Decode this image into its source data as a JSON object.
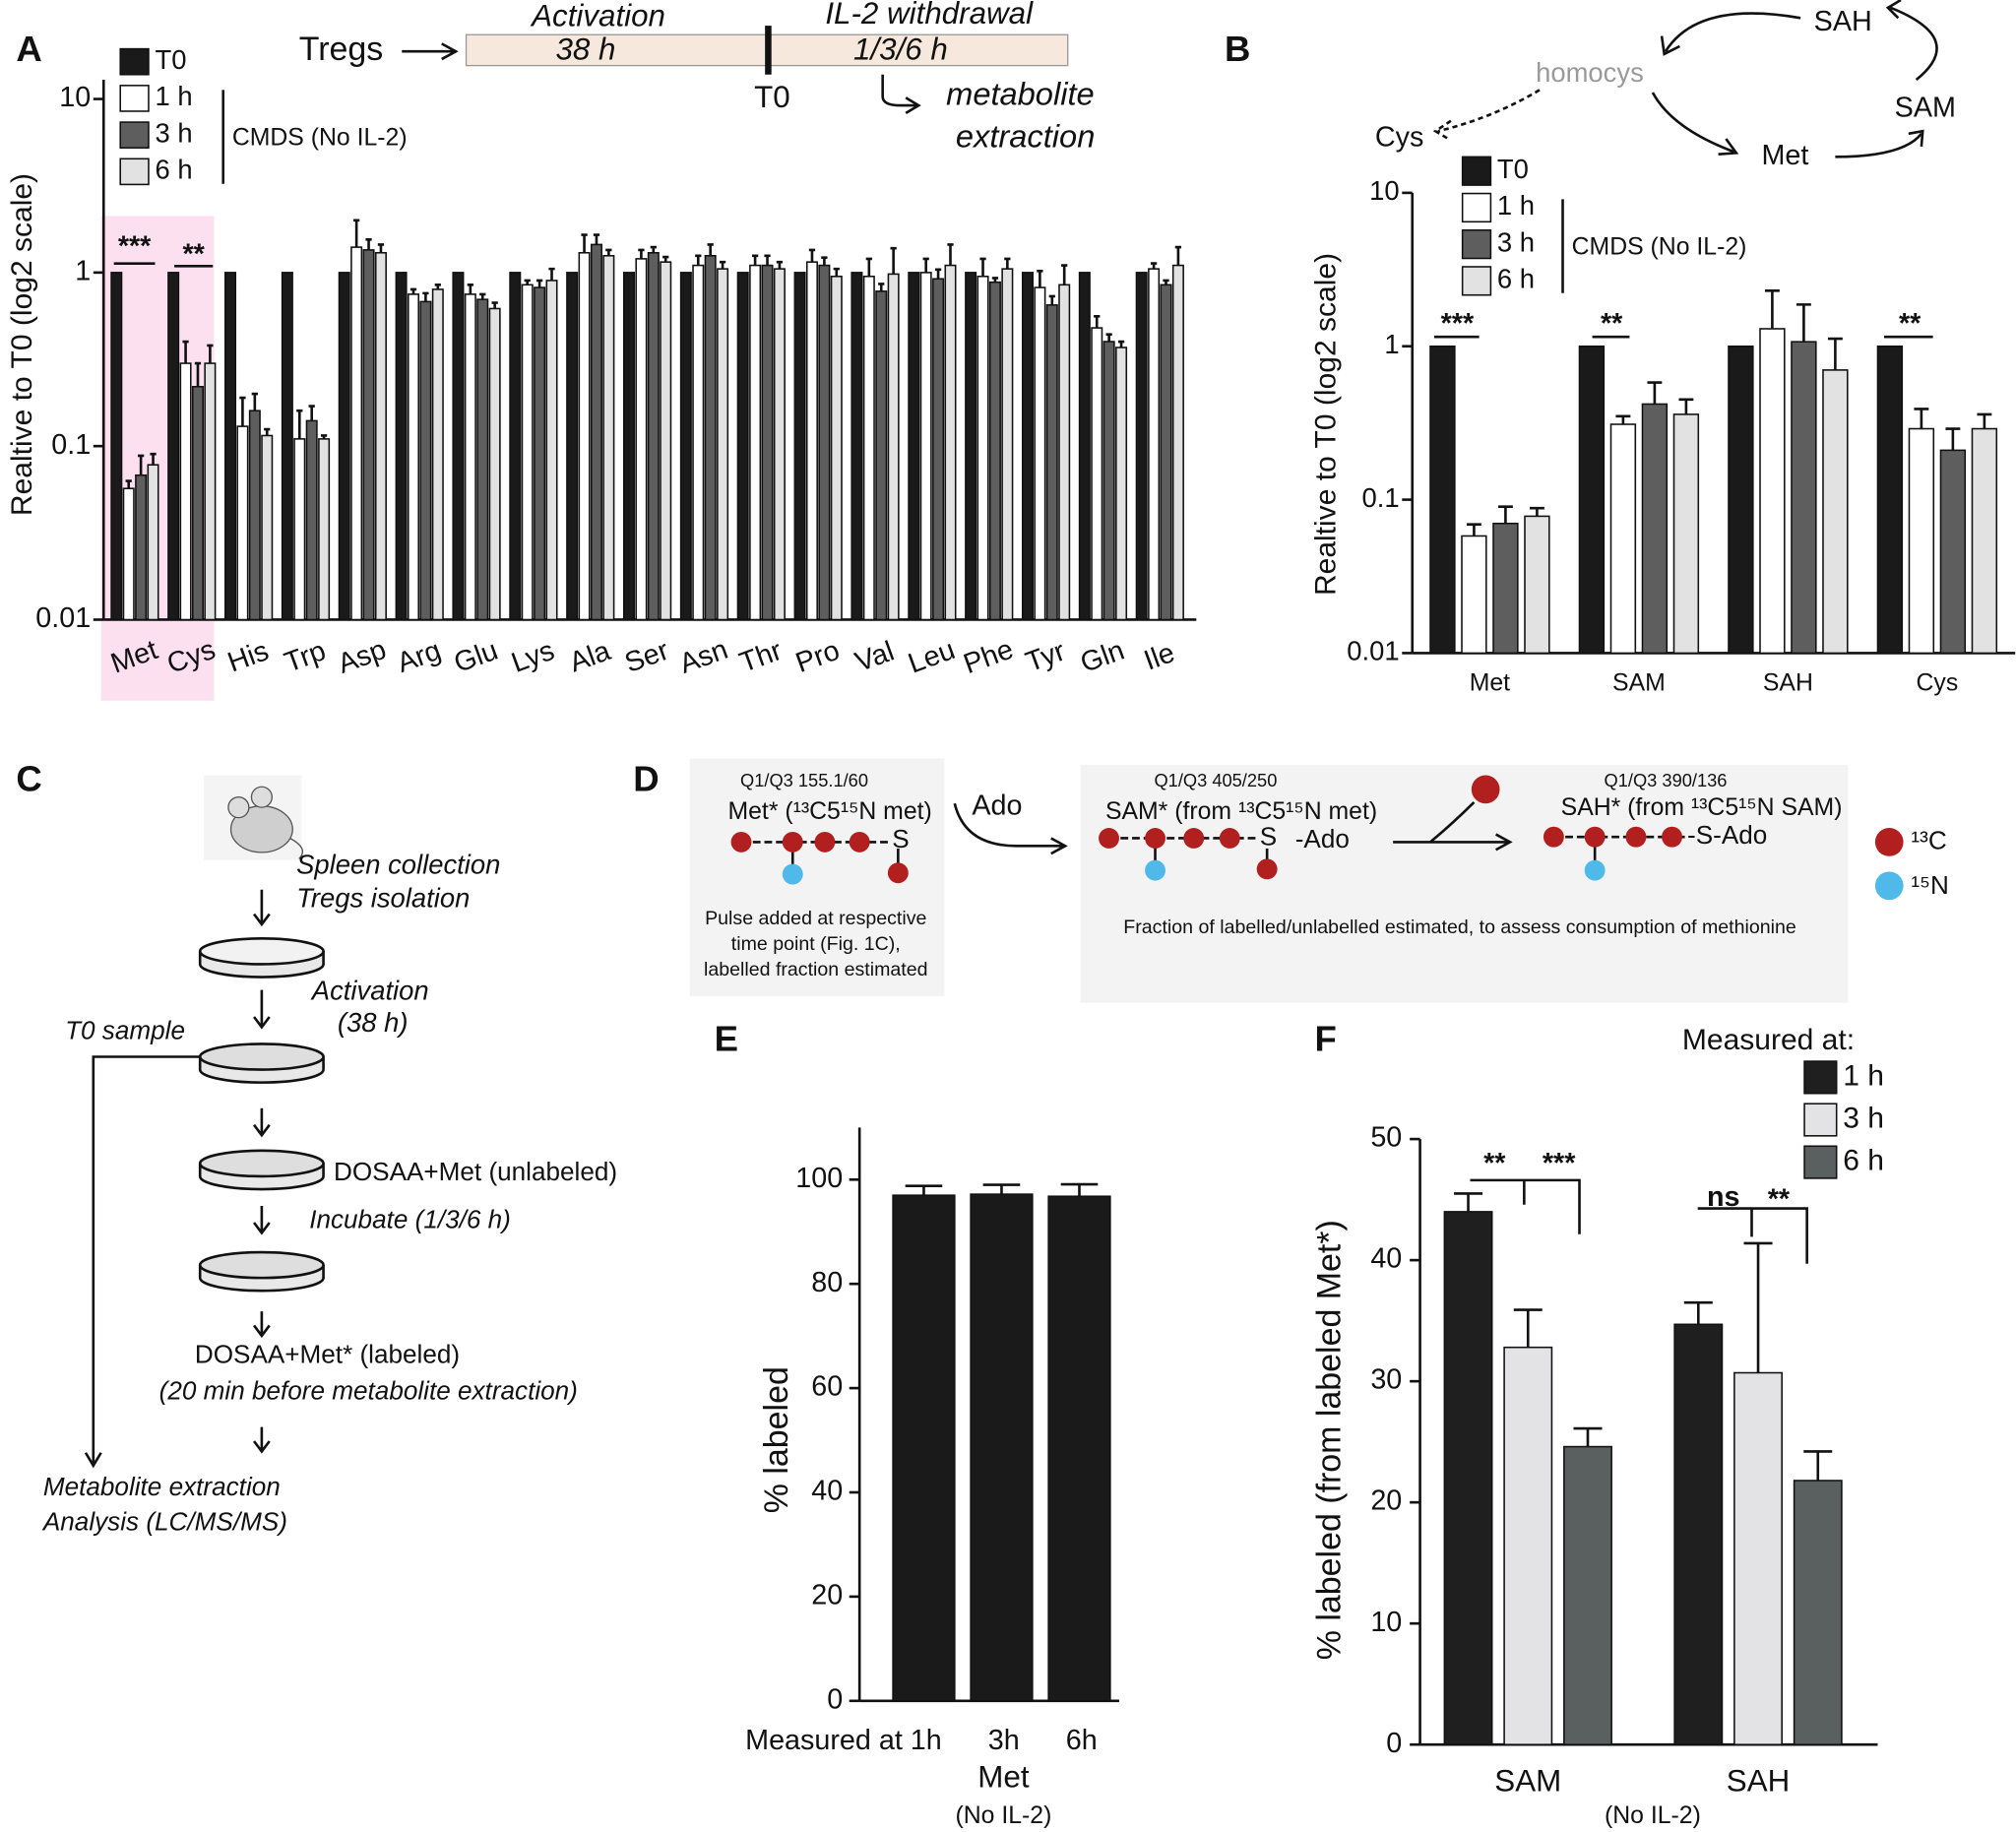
{
  "panel_labels": [
    "A",
    "B",
    "C",
    "D",
    "E",
    "F"
  ],
  "chart_data": [
    {
      "type": "bar",
      "y_label": "Realtive to T0 (log2 scale)",
      "log_scale": true,
      "ylim": [
        0.01,
        10
      ],
      "yticks": [
        0.01,
        0.1,
        1,
        10
      ],
      "categories": [
        "Met",
        "Cys",
        "His",
        "Trp",
        "Asp",
        "Arg",
        "Glu",
        "Lys",
        "Ala",
        "Ser",
        "Asn",
        "Thr",
        "Pro",
        "Val",
        "Leu",
        "Phe",
        "Tyr",
        "Gln",
        "Ile"
      ],
      "series": [
        {
          "name": "T0",
          "color": "#1a1a1a",
          "values": [
            1,
            1,
            1,
            1,
            1,
            1,
            1,
            1,
            1,
            1,
            1,
            1,
            1,
            1,
            1,
            1,
            1,
            1,
            1
          ]
        },
        {
          "name": "1 h",
          "color": "#ffffff",
          "values": [
            0.057,
            0.3,
            0.13,
            0.11,
            1.4,
            0.75,
            0.75,
            0.85,
            1.3,
            1.2,
            1.1,
            1.1,
            1.15,
            0.95,
            1.0,
            0.95,
            0.82,
            0.48,
            1.05
          ],
          "errors": [
            0.006,
            0.1,
            0.06,
            0.05,
            0.6,
            0.05,
            0.1,
            0.05,
            0.35,
            0.15,
            0.15,
            0.15,
            0.2,
            0.25,
            0.2,
            0.25,
            0.2,
            0.08,
            0.08
          ]
        },
        {
          "name": "3 h",
          "color": "#5e5e5e",
          "values": [
            0.068,
            0.22,
            0.16,
            0.14,
            1.35,
            0.68,
            0.7,
            0.82,
            1.45,
            1.3,
            1.25,
            1.1,
            1.1,
            0.78,
            0.92,
            0.88,
            0.65,
            0.4,
            0.85
          ],
          "errors": [
            0.02,
            0.08,
            0.04,
            0.03,
            0.2,
            0.08,
            0.05,
            0.08,
            0.2,
            0.1,
            0.2,
            0.15,
            0.12,
            0.08,
            0.12,
            0.05,
            0.08,
            0.04,
            0.05
          ]
        },
        {
          "name": "6 h",
          "color": "#e2e2e2",
          "values": [
            0.078,
            0.3,
            0.115,
            0.11,
            1.3,
            0.8,
            0.62,
            0.9,
            1.25,
            1.15,
            1.05,
            1.05,
            0.95,
            0.98,
            1.1,
            1.05,
            0.85,
            0.37,
            1.1
          ],
          "errors": [
            0.012,
            0.08,
            0.01,
            0.005,
            0.15,
            0.05,
            0.05,
            0.15,
            0.1,
            0.08,
            0.1,
            0.1,
            0.1,
            0.4,
            0.35,
            0.15,
            0.25,
            0.03,
            0.3
          ]
        }
      ],
      "legend_note": "CMDS (No IL-2)",
      "annotations": [
        "***",
        "**"
      ]
    },
    {
      "type": "bar",
      "y_label": "Realtive to T0 (log2 scale)",
      "log_scale": true,
      "ylim": [
        0.01,
        10
      ],
      "yticks": [
        0.01,
        0.1,
        1,
        10
      ],
      "categories": [
        "Met",
        "SAM",
        "SAH",
        "Cys"
      ],
      "series": [
        {
          "name": "T0",
          "color": "#1a1a1a",
          "values": [
            1,
            1,
            1,
            1
          ]
        },
        {
          "name": "1 h",
          "color": "#ffffff",
          "values": [
            0.058,
            0.31,
            1.3,
            0.29
          ],
          "errors": [
            0.011,
            0.04,
            1.0,
            0.1
          ]
        },
        {
          "name": "3 h",
          "color": "#5e5e5e",
          "values": [
            0.07,
            0.42,
            1.07,
            0.21
          ],
          "errors": [
            0.02,
            0.16,
            0.8,
            0.08
          ]
        },
        {
          "name": "6 h",
          "color": "#e2e2e2",
          "values": [
            0.078,
            0.36,
            0.7,
            0.29
          ],
          "errors": [
            0.01,
            0.09,
            0.42,
            0.07
          ]
        }
      ],
      "legend_note": "CMDS (No IL-2)",
      "annotations": [
        "***",
        "**",
        "**"
      ]
    },
    {
      "type": "bar",
      "y_label": "% labeled",
      "x_label": "Met",
      "x_sublabel": "(No IL-2)",
      "ylim": [
        0,
        110
      ],
      "yticks": [
        0,
        20,
        40,
        60,
        80,
        100
      ],
      "categories": [
        "Measured at 1h",
        "3h",
        "6h"
      ],
      "values": [
        97,
        97.2,
        96.8
      ],
      "errors": [
        1.8,
        1.8,
        2.3
      ],
      "color": "#1a1a1a"
    },
    {
      "type": "bar",
      "y_label": "% labeled (from labeled Met*)",
      "x_label": "(No IL-2)",
      "ylim": [
        0,
        50
      ],
      "yticks": [
        0,
        10,
        20,
        30,
        40,
        50
      ],
      "categories": [
        "SAM",
        "SAH"
      ],
      "legend_title": "Measured at:",
      "series": [
        {
          "name": "1 h",
          "color": "#1f1f1f",
          "values": [
            44,
            34.7
          ],
          "errors": [
            1.5,
            1.8
          ]
        },
        {
          "name": "3 h",
          "color": "#e3e3e5",
          "values": [
            32.8,
            30.7
          ],
          "errors": [
            3.1,
            10.7
          ]
        },
        {
          "name": "6 h",
          "color": "#5a6060",
          "values": [
            24.6,
            21.8
          ],
          "errors": [
            1.5,
            2.4
          ]
        }
      ],
      "annotations": [
        "**",
        "***",
        "ns",
        "**"
      ]
    }
  ],
  "timeline": {
    "start": "Tregs",
    "phase1": "Activation",
    "phase1_time": "38 h",
    "phase2": "IL-2 withdrawal",
    "phase2_time": "1/3/6 h",
    "marker": "T0",
    "outcome": [
      "metabolite",
      "extraction"
    ]
  },
  "pathway": {
    "nodes": [
      "SAH",
      "homocys",
      "SAM",
      "Cys",
      "Met"
    ]
  },
  "workflow": {
    "steps": [
      "Spleen collection",
      "Tregs isolation",
      "Activation",
      "(38 h)",
      "T0 sample",
      "DOSAA+Met (unlabeled)",
      "Incubate (1/3/6 h)",
      "DOSAA+Met* (labeled)",
      "(20 min before metabolite extraction)",
      "Metabolite extraction",
      "Analysis (LC/MS/MS)"
    ]
  },
  "labeling_scheme": {
    "met": {
      "transition": "Q1/Q3 155.1/60",
      "name": "Met* (¹³C5¹⁵N met)",
      "atom": "S",
      "note": [
        "Pulse added at respective",
        "time point (Fig. 1C),",
        "labelled fraction estimated"
      ]
    },
    "reagent": "Ado",
    "sam": {
      "transition": "Q1/Q3 405/250",
      "name": "SAM* (from ¹³C5¹⁵N met)",
      "atom": "S",
      "tail": "-Ado"
    },
    "sah": {
      "transition": "Q1/Q3 390/136",
      "name": "SAH* (from ¹³C5¹⁵N SAM)",
      "tail": "-S-Ado"
    },
    "note": "Fraction of labelled/unlabelled estimated, to assess consumption of methionine",
    "legend": [
      "¹³C",
      "¹⁵N"
    ]
  }
}
